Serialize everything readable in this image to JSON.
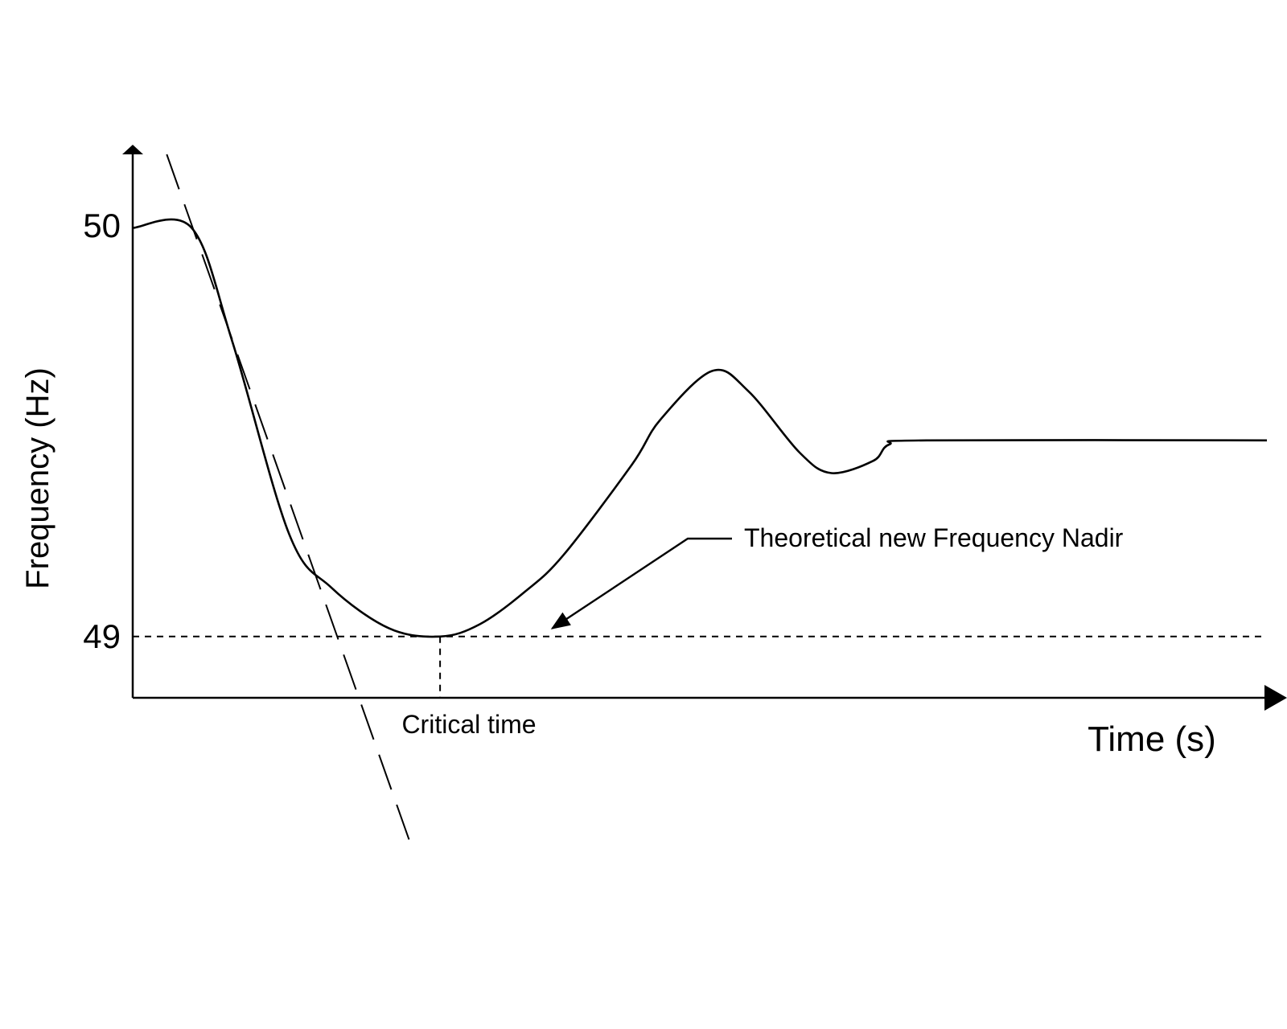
{
  "chart_data": {
    "type": "line",
    "title": "",
    "xlabel": "Time (s)",
    "ylabel": "Frequency (Hz)",
    "y_ticks": [
      {
        "value": 50,
        "label": "50"
      },
      {
        "value": 49,
        "label": "49"
      }
    ],
    "ylim": [
      48.85,
      50.18
    ],
    "xlim": [
      0,
      100
    ],
    "grid": false,
    "legend": "none",
    "series": [
      {
        "style": "solid",
        "points": [
          [
            0,
            50.0
          ],
          [
            5.2,
            50.0
          ],
          [
            8.8,
            49.72
          ],
          [
            13.8,
            49.25
          ],
          [
            17.5,
            49.12
          ],
          [
            22.6,
            49.02
          ],
          [
            27.1,
            49.0
          ],
          [
            30.6,
            49.03
          ],
          [
            34.6,
            49.11
          ],
          [
            38.0,
            49.2
          ],
          [
            44.0,
            49.42
          ],
          [
            46.5,
            49.53
          ],
          [
            51.1,
            49.65
          ],
          [
            54.3,
            49.6
          ],
          [
            58.8,
            49.45
          ],
          [
            61.6,
            49.4
          ],
          [
            65.3,
            49.43
          ],
          [
            66.7,
            49.47
          ],
          [
            70.0,
            49.48
          ],
          [
            100.0,
            49.48
          ]
        ]
      },
      {
        "name": "tangent",
        "style": "dashed",
        "points": [
          [
            3.0,
            50.18
          ],
          [
            24.4,
            48.5
          ]
        ]
      }
    ],
    "reference_lines": [
      {
        "axis": "y",
        "value": 49,
        "style": "dashed"
      },
      {
        "axis": "x",
        "value": 27.1,
        "style": "dashed",
        "from": 48.85,
        "to": 49.0
      }
    ],
    "annotations": [
      {
        "text": "Theoretical new Frequency Nadir",
        "arrow_to": [
          37.0,
          49.02
        ]
      },
      {
        "text": "Critical time",
        "at_x": 27.1
      }
    ]
  }
}
